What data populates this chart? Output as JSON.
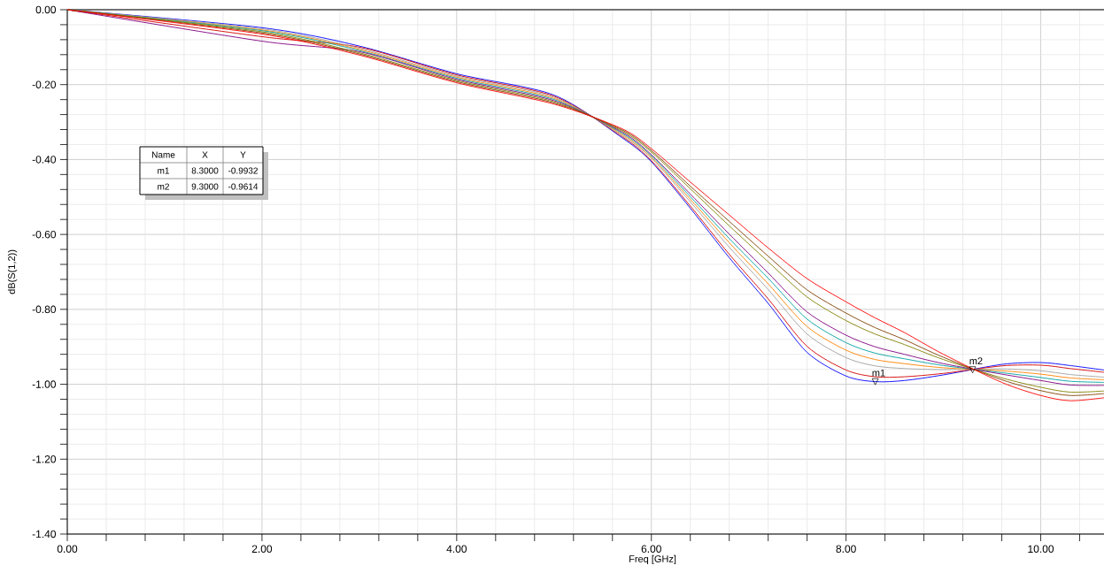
{
  "chart_data": {
    "type": "line",
    "xlabel": "Freq [GHz]",
    "ylabel": "dB(S(1,2))",
    "xlim": [
      0,
      10.65
    ],
    "ylim": [
      -1.4,
      0
    ],
    "xticks": [
      {
        "value": 0,
        "label": "0.00"
      },
      {
        "value": 0.4,
        "label": null
      },
      {
        "value": 0.8,
        "label": null
      },
      {
        "value": 1.2,
        "label": null
      },
      {
        "value": 1.6,
        "label": null
      },
      {
        "value": 2,
        "label": "2.00"
      },
      {
        "value": 2.4,
        "label": null
      },
      {
        "value": 2.8,
        "label": null
      },
      {
        "value": 3.2,
        "label": null
      },
      {
        "value": 3.6,
        "label": null
      },
      {
        "value": 4,
        "label": "4.00"
      },
      {
        "value": 4.4,
        "label": null
      },
      {
        "value": 4.8,
        "label": null
      },
      {
        "value": 5.2,
        "label": null
      },
      {
        "value": 5.6,
        "label": null
      },
      {
        "value": 6,
        "label": "6.00"
      },
      {
        "value": 6.4,
        "label": null
      },
      {
        "value": 6.8,
        "label": null
      },
      {
        "value": 7.2,
        "label": null
      },
      {
        "value": 7.6,
        "label": null
      },
      {
        "value": 8,
        "label": "8.00"
      },
      {
        "value": 8.4,
        "label": null
      },
      {
        "value": 8.8,
        "label": null
      },
      {
        "value": 9.2,
        "label": null
      },
      {
        "value": 9.6,
        "label": null
      },
      {
        "value": 10,
        "label": "10.00"
      },
      {
        "value": 10.4,
        "label": null
      }
    ],
    "yticks": [
      {
        "value": -1.4,
        "label": "-1.40"
      },
      {
        "value": -1.36,
        "label": null
      },
      {
        "value": -1.32,
        "label": null
      },
      {
        "value": -1.28,
        "label": null
      },
      {
        "value": -1.24,
        "label": null
      },
      {
        "value": -1.2,
        "label": "-1.20"
      },
      {
        "value": -1.16,
        "label": null
      },
      {
        "value": -1.12,
        "label": null
      },
      {
        "value": -1.08,
        "label": null
      },
      {
        "value": -1.04,
        "label": null
      },
      {
        "value": -1.0,
        "label": "-1.00"
      },
      {
        "value": -0.96,
        "label": null
      },
      {
        "value": -0.92,
        "label": null
      },
      {
        "value": -0.88,
        "label": null
      },
      {
        "value": -0.84,
        "label": null
      },
      {
        "value": -0.8,
        "label": "-0.80"
      },
      {
        "value": -0.76,
        "label": null
      },
      {
        "value": -0.72,
        "label": null
      },
      {
        "value": -0.68,
        "label": null
      },
      {
        "value": -0.64,
        "label": null
      },
      {
        "value": -0.6,
        "label": "-0.60"
      },
      {
        "value": -0.56,
        "label": null
      },
      {
        "value": -0.52,
        "label": null
      },
      {
        "value": -0.48,
        "label": null
      },
      {
        "value": -0.44,
        "label": null
      },
      {
        "value": -0.4,
        "label": "-0.40"
      },
      {
        "value": -0.36,
        "label": null
      },
      {
        "value": -0.32,
        "label": null
      },
      {
        "value": -0.28,
        "label": null
      },
      {
        "value": -0.24,
        "label": null
      },
      {
        "value": -0.2,
        "label": "-0.20"
      },
      {
        "value": -0.16,
        "label": null
      },
      {
        "value": -0.12,
        "label": null
      },
      {
        "value": -0.08,
        "label": null
      },
      {
        "value": -0.04,
        "label": null
      },
      {
        "value": 0,
        "label": "0.00"
      }
    ],
    "grid": true,
    "x": [
      0,
      2,
      3,
      4,
      5,
      5.7,
      6,
      6.4,
      6.8,
      7.2,
      7.6,
      8.0,
      8.3,
      8.6,
      9.0,
      9.6,
      10.0,
      10.3,
      10.65
    ],
    "series": [
      {
        "color": "#0000ff",
        "values": [
          0,
          -0.048,
          -0.097,
          -0.171,
          -0.228,
          -0.342,
          -0.406,
          -0.53,
          -0.662,
          -0.784,
          -0.915,
          -0.978,
          -0.993,
          -0.99,
          -0.975,
          -0.947,
          -0.942,
          -0.95,
          -0.962
        ]
      },
      {
        "color": "#d40000",
        "values": [
          0,
          -0.072,
          -0.1,
          -0.174,
          -0.231,
          -0.339,
          -0.403,
          -0.524,
          -0.653,
          -0.772,
          -0.899,
          -0.962,
          -0.98,
          -0.98,
          -0.971,
          -0.951,
          -0.949,
          -0.958,
          -0.968
        ]
      },
      {
        "color": "#a0a0a0",
        "values": [
          0,
          -0.051,
          -0.103,
          -0.177,
          -0.234,
          -0.336,
          -0.397,
          -0.513,
          -0.634,
          -0.747,
          -0.866,
          -0.929,
          -0.951,
          -0.958,
          -0.961,
          -0.959,
          -0.964,
          -0.974,
          -0.981
        ]
      },
      {
        "color": "#ff8000",
        "values": [
          0,
          -0.054,
          -0.106,
          -0.18,
          -0.237,
          -0.333,
          -0.394,
          -0.506,
          -0.622,
          -0.732,
          -0.846,
          -0.909,
          -0.934,
          -0.945,
          -0.956,
          -0.964,
          -0.973,
          -0.983,
          -0.988
        ]
      },
      {
        "color": "#00a0a0",
        "values": [
          0,
          -0.056,
          -0.109,
          -0.183,
          -0.24,
          -0.33,
          -0.39,
          -0.499,
          -0.611,
          -0.717,
          -0.826,
          -0.889,
          -0.917,
          -0.932,
          -0.95,
          -0.969,
          -0.982,
          -0.992,
          -0.995
        ]
      },
      {
        "color": "#800080",
        "values": [
          0,
          -0.084,
          -0.112,
          -0.186,
          -0.243,
          -0.327,
          -0.387,
          -0.492,
          -0.599,
          -0.703,
          -0.807,
          -0.869,
          -0.9,
          -0.92,
          -0.945,
          -0.973,
          -0.99,
          -1.002,
          -1.003
        ]
      },
      {
        "color": "#808000",
        "values": [
          0,
          -0.059,
          -0.115,
          -0.189,
          -0.246,
          -0.324,
          -0.38,
          -0.478,
          -0.577,
          -0.673,
          -0.767,
          -0.83,
          -0.866,
          -0.894,
          -0.934,
          -0.983,
          -1.008,
          -1.021,
          -1.018
        ]
      },
      {
        "color": "#804000",
        "values": [
          0,
          -0.062,
          -0.118,
          -0.192,
          -0.249,
          -0.321,
          -0.376,
          -0.471,
          -0.565,
          -0.658,
          -0.748,
          -0.81,
          -0.849,
          -0.881,
          -0.928,
          -0.988,
          -1.017,
          -1.03,
          -1.025
        ]
      },
      {
        "color": "#ff0000",
        "values": [
          0,
          -0.065,
          -0.121,
          -0.195,
          -0.252,
          -0.318,
          -0.371,
          -0.46,
          -0.548,
          -0.636,
          -0.718,
          -0.78,
          -0.823,
          -0.862,
          -0.92,
          -0.995,
          -1.03,
          -1.044,
          -1.036
        ]
      }
    ],
    "annotations": [
      {
        "text": "m1",
        "x": 8.3,
        "y": -0.9932
      },
      {
        "text": "m2",
        "x": 9.3,
        "y": -0.9614
      },
      "Name",
      "X",
      "Y",
      "m1",
      "8.3000",
      "-0.9932",
      "m2",
      "9.3000",
      "-0.9614"
    ]
  }
}
